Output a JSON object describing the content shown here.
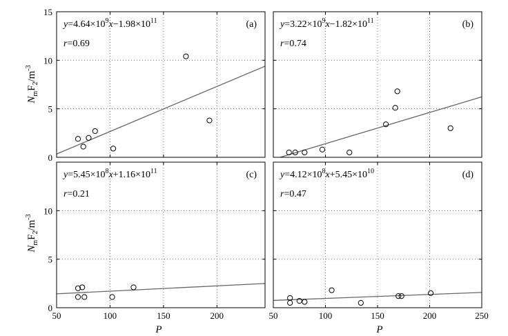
{
  "figure": {
    "ylabel_main": "N",
    "ylabel_sub": "m",
    "ylabel_rest": "F",
    "ylabel_sub2": "2",
    "ylabel_unit": "/m",
    "ylabel_exp": "-3",
    "xlabel": "P"
  },
  "chart_data": [
    {
      "type": "scatter",
      "panel": "(a)",
      "equation": {
        "coef1": "4.64",
        "exp1": "9",
        "sign": "−",
        "coef2": "1.98",
        "exp2": "11"
      },
      "r_text": "r=0.69",
      "xlim": [
        50,
        245
      ],
      "ylim": [
        0,
        15
      ],
      "xticks": [
        "50",
        "100",
        "150",
        "200"
      ],
      "xtick_vals": [
        50,
        100,
        150,
        200
      ],
      "yticks": [
        "0",
        "5",
        "10",
        "15"
      ],
      "ytick_vals": [
        0,
        5,
        10,
        15
      ],
      "points": [
        [
          70,
          1.9
        ],
        [
          75,
          1.1
        ],
        [
          80,
          2.0
        ],
        [
          86,
          2.7
        ],
        [
          103,
          0.9
        ],
        [
          171,
          10.4
        ],
        [
          193,
          3.8
        ]
      ],
      "fit": {
        "slope": 0.0464,
        "intercept": -1.98
      }
    },
    {
      "type": "scatter",
      "panel": "(b)",
      "equation": {
        "coef1": "3.22",
        "exp1": "9",
        "sign": "−",
        "coef2": "1.82",
        "exp2": "11"
      },
      "r_text": "r=0.74",
      "xlim": [
        50,
        250
      ],
      "ylim": [
        0,
        15
      ],
      "xticks": [
        "50",
        "100",
        "150",
        "200",
        "250"
      ],
      "xtick_vals": [
        50,
        100,
        150,
        200,
        250
      ],
      "yticks": [
        "0",
        "5",
        "10",
        "15"
      ],
      "ytick_vals": [
        0,
        5,
        10,
        15
      ],
      "points": [
        [
          65,
          0.5
        ],
        [
          71,
          0.5
        ],
        [
          80,
          0.5
        ],
        [
          97,
          0.8
        ],
        [
          123,
          0.5
        ],
        [
          158,
          3.4
        ],
        [
          167,
          5.1
        ],
        [
          169,
          6.8
        ],
        [
          220,
          3.0
        ]
      ],
      "fit": {
        "slope": 0.0322,
        "intercept": -1.82
      }
    },
    {
      "type": "scatter",
      "panel": "(c)",
      "equation": {
        "coef1": "5.45",
        "exp1": "8",
        "sign": "+",
        "coef2": "1.16",
        "exp2": "11"
      },
      "r_text": "r=0.21",
      "xlim": [
        50,
        245
      ],
      "ylim": [
        0,
        15
      ],
      "xticks": [
        "50",
        "100",
        "150",
        "200"
      ],
      "xtick_vals": [
        50,
        100,
        150,
        200
      ],
      "yticks": [
        "0",
        "5",
        "10",
        ""
      ],
      "ytick_vals": [
        0,
        5,
        10,
        15
      ],
      "points": [
        [
          70,
          2.0
        ],
        [
          74,
          2.1
        ],
        [
          70,
          1.1
        ],
        [
          76,
          1.1
        ],
        [
          102,
          1.1
        ],
        [
          122,
          2.1
        ]
      ],
      "fit": {
        "slope": 0.00545,
        "intercept": 1.16
      }
    },
    {
      "type": "scatter",
      "panel": "(d)",
      "equation": {
        "coef1": "4.12",
        "exp1": "8",
        "sign": "+",
        "coef2": "5.45",
        "exp2": "10"
      },
      "r_text": "r=0.47",
      "xlim": [
        50,
        250
      ],
      "ylim": [
        0,
        15
      ],
      "xticks": [
        "50",
        "100",
        "150",
        "200",
        "250"
      ],
      "xtick_vals": [
        50,
        100,
        150,
        200,
        250
      ],
      "yticks": [
        "0",
        "5",
        "10",
        ""
      ],
      "ytick_vals": [
        0,
        5,
        10,
        15
      ],
      "points": [
        [
          66,
          1.0
        ],
        [
          66,
          0.5
        ],
        [
          75,
          0.7
        ],
        [
          80,
          0.6
        ],
        [
          106,
          1.8
        ],
        [
          134,
          0.5
        ],
        [
          170,
          1.2
        ],
        [
          173,
          1.2
        ],
        [
          201,
          1.5
        ]
      ],
      "fit": {
        "slope": 0.00412,
        "intercept": 0.545
      }
    }
  ]
}
